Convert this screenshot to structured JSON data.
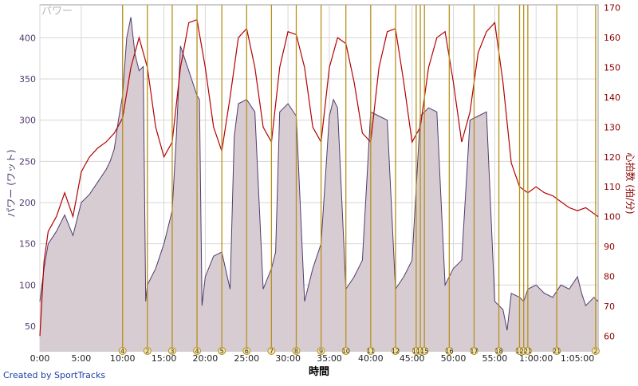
{
  "title": "パワー",
  "credit": "Created by SportTracks",
  "colors": {
    "power_fill": "#d8ccd3",
    "power_line": "#503b6e",
    "hr_line": "#b40000",
    "marker": "#b8901d",
    "grid": "#d7d7d7",
    "axis_left": "#503b6e",
    "axis_right": "#8b0000"
  },
  "chart_data": {
    "type": "area",
    "title": "パワー",
    "xlabel": "時間",
    "ylabel": "パワー (ワット)",
    "y2label": "心拍数 (拍/分)",
    "xlim_min": [
      0,
      67.5
    ],
    "ylim": [
      20,
      440
    ],
    "y2lim": [
      55,
      171
    ],
    "grid": true,
    "x_ticks": [
      "0:00",
      "5:00",
      "10:00",
      "15:00",
      "20:00",
      "25:00",
      "30:00",
      "35:00",
      "40:00",
      "45:00",
      "50:00",
      "55:00",
      "1:00:00",
      "1:05:00"
    ],
    "x_tick_values_min": [
      0,
      5,
      10,
      15,
      20,
      25,
      30,
      35,
      40,
      45,
      50,
      55,
      60,
      65
    ],
    "y_ticks": [
      50,
      100,
      150,
      200,
      250,
      300,
      350,
      400
    ],
    "y2_ticks": [
      60,
      70,
      80,
      90,
      100,
      110,
      120,
      130,
      140,
      150,
      160,
      170
    ],
    "series": [
      {
        "name": "パワー",
        "axis": "left",
        "x": [
          0,
          0.5,
          1,
          2,
          3,
          4,
          5,
          6,
          7,
          8,
          8.5,
          9,
          9.5,
          10,
          10.5,
          11,
          11.5,
          12,
          12.5,
          12.8,
          13,
          14,
          15,
          16,
          16.5,
          17,
          18,
          19,
          19.3,
          19.6,
          20,
          21,
          22,
          23,
          23.5,
          24,
          25,
          26,
          27,
          28,
          28.5,
          29,
          30,
          31,
          32,
          33,
          34,
          35,
          35.5,
          36,
          37,
          38,
          39,
          40,
          41,
          42,
          43,
          44,
          45,
          46,
          47,
          48,
          49,
          50,
          51,
          52,
          53,
          54,
          55,
          56,
          56.5,
          57,
          58,
          58.5,
          59,
          60,
          61,
          62,
          63,
          64,
          65,
          65.5,
          66,
          67,
          67.5
        ],
        "values": [
          80,
          120,
          150,
          165,
          185,
          160,
          200,
          210,
          225,
          240,
          250,
          265,
          300,
          330,
          400,
          425,
          380,
          360,
          365,
          80,
          100,
          120,
          150,
          190,
          280,
          390,
          360,
          330,
          325,
          75,
          110,
          135,
          140,
          95,
          280,
          320,
          325,
          310,
          95,
          120,
          140,
          310,
          320,
          305,
          80,
          120,
          150,
          305,
          325,
          315,
          95,
          110,
          130,
          310,
          305,
          300,
          95,
          110,
          130,
          305,
          315,
          310,
          100,
          120,
          130,
          300,
          305,
          310,
          80,
          70,
          45,
          90,
          85,
          80,
          95,
          100,
          90,
          85,
          100,
          95,
          110,
          90,
          75,
          85,
          80
        ]
      },
      {
        "name": "心拍数",
        "axis": "right",
        "x": [
          0,
          0.5,
          1,
          2,
          3,
          4,
          5,
          6,
          7,
          8,
          9,
          10,
          11,
          12,
          13,
          14,
          15,
          16,
          17,
          18,
          19,
          20,
          21,
          22,
          23,
          24,
          25,
          26,
          27,
          28,
          29,
          30,
          31,
          32,
          33,
          34,
          35,
          36,
          37,
          38,
          39,
          40,
          41,
          42,
          43,
          44,
          45,
          46,
          47,
          48,
          49,
          50,
          51,
          52,
          53,
          54,
          55,
          56,
          57,
          58,
          59,
          60,
          61,
          62,
          63,
          64,
          65,
          66,
          67,
          67.5
        ],
        "values": [
          60,
          85,
          95,
          100,
          108,
          100,
          115,
          120,
          123,
          125,
          128,
          133,
          150,
          160,
          150,
          130,
          120,
          125,
          150,
          165,
          166,
          150,
          130,
          122,
          140,
          160,
          163,
          150,
          130,
          125,
          150,
          162,
          161,
          150,
          130,
          125,
          150,
          160,
          158,
          145,
          128,
          125,
          150,
          162,
          163,
          145,
          125,
          130,
          150,
          160,
          162,
          145,
          125,
          135,
          155,
          162,
          165,
          145,
          118,
          110,
          108,
          110,
          108,
          107,
          105,
          103,
          102,
          103,
          101,
          100
        ]
      }
    ],
    "marker_x_min": [
      10,
      13,
      16,
      19,
      22,
      25,
      28,
      31,
      34,
      37,
      40,
      43,
      45.5,
      46,
      46.5,
      49.5,
      52.5,
      55.5,
      58,
      58.5,
      59,
      62.5,
      67.2
    ],
    "marker_labels": [
      "4",
      "2",
      "3",
      "4",
      "5",
      "6",
      "7",
      "8",
      "9",
      "10",
      "11",
      "12",
      "13",
      "14",
      "15",
      "16",
      "17",
      "18",
      "19",
      "20",
      "21",
      "21",
      "2"
    ]
  }
}
